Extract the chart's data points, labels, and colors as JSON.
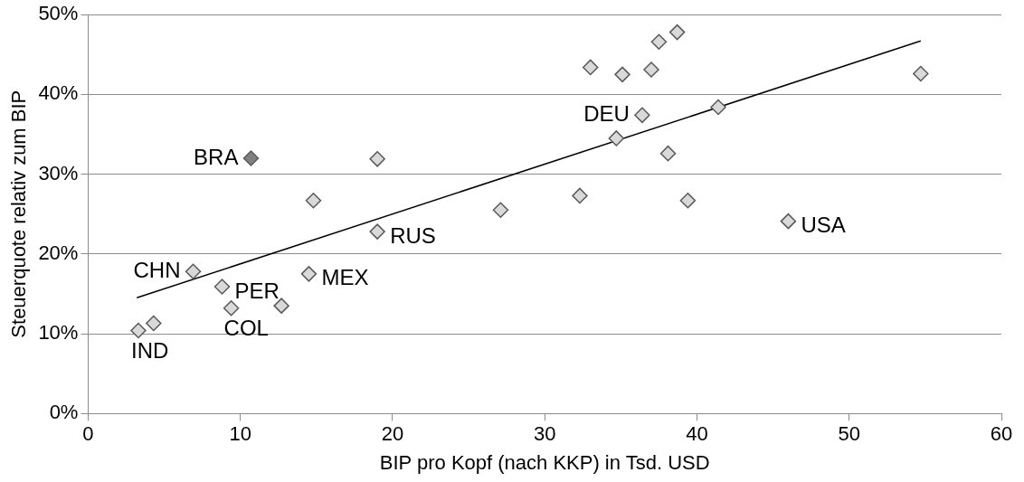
{
  "chart_data": {
    "type": "scatter",
    "xlabel": "BIP pro Kopf (nach KKP) in Tsd. USD",
    "ylabel": "Steuerquote relativ zum BIP",
    "xlim": [
      0,
      60
    ],
    "xticks": [
      0,
      10,
      20,
      30,
      40,
      50,
      60
    ],
    "ylim": [
      0,
      50
    ],
    "yticks": [
      {
        "value": 0,
        "label": "0%"
      },
      {
        "value": 10,
        "label": "10%"
      },
      {
        "value": 20,
        "label": "20%"
      },
      {
        "value": 30,
        "label": "30%"
      },
      {
        "value": 40,
        "label": "40%"
      },
      {
        "value": 50,
        "label": "50%"
      }
    ],
    "grid": "y",
    "legend": false,
    "marker": "diamond",
    "series": [
      {
        "type": "scatter",
        "colors": [
          "#d9d9d9",
          "#d9d9d9",
          "#d9d9d9",
          "#d9d9d9",
          "#d9d9d9",
          "#808080",
          "#d9d9d9",
          "#d9d9d9",
          "#d9d9d9",
          "#d9d9d9",
          "#d9d9d9",
          "#d9d9d9",
          "#d9d9d9",
          "#d9d9d9",
          "#d9d9d9",
          "#d9d9d9",
          "#d9d9d9",
          "#d9d9d9",
          "#d9d9d9",
          "#d9d9d9",
          "#d9d9d9",
          "#d9d9d9",
          "#d9d9d9",
          "#d9d9d9",
          "#d9d9d9"
        ],
        "x": [
          3.3,
          4.3,
          6.9,
          8.8,
          9.4,
          10.7,
          12.7,
          14.5,
          14.8,
          19.0,
          19.0,
          27.1,
          32.3,
          33.0,
          35.1,
          37.0,
          37.5,
          38.7,
          36.4,
          34.7,
          41.4,
          38.1,
          39.4,
          46.0,
          54.7
        ],
        "values": [
          10.4,
          11.3,
          17.8,
          15.9,
          13.2,
          32.0,
          13.5,
          17.5,
          26.7,
          31.9,
          22.8,
          25.5,
          27.3,
          43.4,
          42.5,
          43.1,
          46.6,
          47.8,
          37.4,
          34.5,
          38.4,
          32.6,
          26.7,
          24.1,
          42.6
        ]
      },
      {
        "type": "line",
        "color": "#000000",
        "marker": "none",
        "x": [
          3.2,
          54.7
        ],
        "values": [
          14.5,
          46.7
        ]
      }
    ],
    "annotations": [
      {
        "text": "IND",
        "x": 3.3,
        "y": 10.4
      },
      {
        "text": "CHN",
        "x": 6.9,
        "y": 17.8
      },
      {
        "text": "PER",
        "x": 8.8,
        "y": 15.9
      },
      {
        "text": "COL",
        "x": 9.4,
        "y": 13.2
      },
      {
        "text": "BRA",
        "x": 10.7,
        "y": 32.0
      },
      {
        "text": "MEX",
        "x": 14.5,
        "y": 17.5
      },
      {
        "text": "RUS",
        "x": 19.0,
        "y": 22.8
      },
      {
        "text": "DEU",
        "x": 36.4,
        "y": 37.4
      },
      {
        "text": "USA",
        "x": 46.0,
        "y": 24.1
      }
    ]
  }
}
